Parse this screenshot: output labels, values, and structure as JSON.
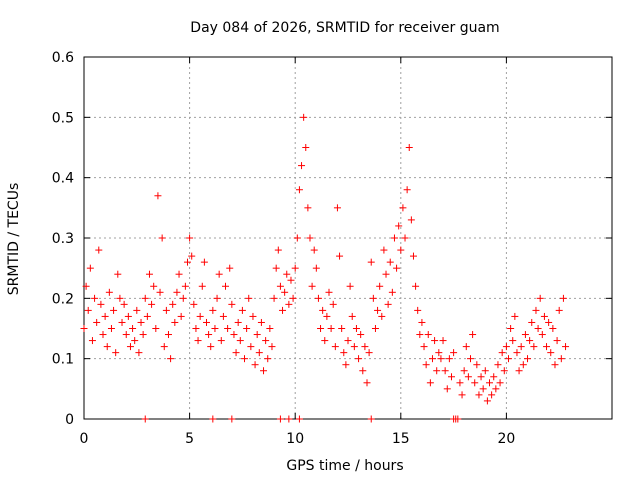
{
  "chart_data": {
    "type": "scatter",
    "title": "Day 084 of 2026, SRMTID for receiver guam",
    "xlabel": "GPS time / hours",
    "ylabel": "SRMTID / TECUs",
    "xlim": [
      0,
      25
    ],
    "ylim": [
      0,
      0.6
    ],
    "xticks": [
      {
        "value": 0,
        "label": "0"
      },
      {
        "value": 5,
        "label": "5"
      },
      {
        "value": 10,
        "label": "10"
      },
      {
        "value": 15,
        "label": "15"
      },
      {
        "value": 20,
        "label": "20"
      }
    ],
    "yticks": [
      {
        "value": 0,
        "label": "0"
      },
      {
        "value": 0.1,
        "label": "0.1"
      },
      {
        "value": 0.2,
        "label": "0.2"
      },
      {
        "value": 0.3,
        "label": "0.3"
      },
      {
        "value": 0.4,
        "label": "0.4"
      },
      {
        "value": 0.5,
        "label": "0.5"
      },
      {
        "value": 0.6,
        "label": "0.6"
      }
    ],
    "grid": true,
    "marker": "+",
    "marker_color": "#ff0000",
    "series": [
      {
        "name": "SRMTID",
        "color": "#ff0000",
        "points": [
          [
            0.0,
            0.15
          ],
          [
            0.1,
            0.22
          ],
          [
            0.2,
            0.18
          ],
          [
            0.3,
            0.25
          ],
          [
            0.4,
            0.13
          ],
          [
            0.5,
            0.2
          ],
          [
            0.6,
            0.16
          ],
          [
            0.7,
            0.28
          ],
          [
            0.8,
            0.19
          ],
          [
            0.9,
            0.14
          ],
          [
            1.0,
            0.17
          ],
          [
            1.1,
            0.12
          ],
          [
            1.2,
            0.21
          ],
          [
            1.3,
            0.15
          ],
          [
            1.4,
            0.18
          ],
          [
            1.5,
            0.11
          ],
          [
            1.6,
            0.24
          ],
          [
            1.7,
            0.2
          ],
          [
            1.8,
            0.16
          ],
          [
            1.9,
            0.19
          ],
          [
            2.0,
            0.14
          ],
          [
            2.1,
            0.17
          ],
          [
            2.2,
            0.12
          ],
          [
            2.3,
            0.15
          ],
          [
            2.4,
            0.13
          ],
          [
            2.5,
            0.18
          ],
          [
            2.6,
            0.11
          ],
          [
            2.7,
            0.16
          ],
          [
            2.8,
            0.14
          ],
          [
            2.9,
            0.2
          ],
          [
            3.0,
            0.17
          ],
          [
            3.1,
            0.24
          ],
          [
            3.2,
            0.19
          ],
          [
            3.3,
            0.22
          ],
          [
            3.4,
            0.15
          ],
          [
            3.5,
            0.37
          ],
          [
            3.6,
            0.21
          ],
          [
            3.7,
            0.3
          ],
          [
            3.8,
            0.12
          ],
          [
            3.9,
            0.18
          ],
          [
            4.0,
            0.14
          ],
          [
            4.1,
            0.1
          ],
          [
            4.2,
            0.19
          ],
          [
            4.3,
            0.16
          ],
          [
            4.4,
            0.21
          ],
          [
            4.5,
            0.24
          ],
          [
            4.6,
            0.17
          ],
          [
            4.7,
            0.2
          ],
          [
            4.8,
            0.22
          ],
          [
            4.9,
            0.26
          ],
          [
            5.0,
            0.3
          ],
          [
            5.1,
            0.27
          ],
          [
            5.2,
            0.19
          ],
          [
            5.3,
            0.15
          ],
          [
            5.4,
            0.13
          ],
          [
            5.5,
            0.17
          ],
          [
            5.6,
            0.22
          ],
          [
            5.7,
            0.26
          ],
          [
            5.8,
            0.16
          ],
          [
            5.9,
            0.14
          ],
          [
            6.0,
            0.12
          ],
          [
            6.1,
            0.18
          ],
          [
            6.2,
            0.15
          ],
          [
            6.3,
            0.2
          ],
          [
            6.4,
            0.24
          ],
          [
            6.5,
            0.13
          ],
          [
            6.6,
            0.17
          ],
          [
            6.7,
            0.22
          ],
          [
            6.8,
            0.15
          ],
          [
            6.9,
            0.25
          ],
          [
            7.0,
            0.19
          ],
          [
            7.1,
            0.14
          ],
          [
            7.2,
            0.11
          ],
          [
            7.3,
            0.16
          ],
          [
            7.4,
            0.13
          ],
          [
            7.5,
            0.18
          ],
          [
            7.6,
            0.1
          ],
          [
            7.7,
            0.15
          ],
          [
            7.8,
            0.2
          ],
          [
            7.9,
            0.12
          ],
          [
            8.0,
            0.17
          ],
          [
            8.1,
            0.09
          ],
          [
            8.2,
            0.14
          ],
          [
            8.3,
            0.11
          ],
          [
            8.4,
            0.16
          ],
          [
            8.5,
            0.08
          ],
          [
            8.6,
            0.13
          ],
          [
            8.7,
            0.1
          ],
          [
            8.8,
            0.15
          ],
          [
            8.9,
            0.12
          ],
          [
            9.0,
            0.2
          ],
          [
            9.1,
            0.25
          ],
          [
            9.2,
            0.28
          ],
          [
            9.3,
            0.22
          ],
          [
            9.4,
            0.18
          ],
          [
            9.5,
            0.21
          ],
          [
            9.6,
            0.24
          ],
          [
            9.7,
            0.19
          ],
          [
            9.8,
            0.23
          ],
          [
            9.9,
            0.2
          ],
          [
            10.0,
            0.25
          ],
          [
            10.1,
            0.3
          ],
          [
            10.2,
            0.38
          ],
          [
            10.3,
            0.42
          ],
          [
            10.4,
            0.5
          ],
          [
            10.5,
            0.45
          ],
          [
            10.6,
            0.35
          ],
          [
            10.7,
            0.3
          ],
          [
            10.8,
            0.22
          ],
          [
            10.9,
            0.28
          ],
          [
            11.0,
            0.25
          ],
          [
            11.1,
            0.2
          ],
          [
            11.2,
            0.15
          ],
          [
            11.3,
            0.18
          ],
          [
            11.4,
            0.13
          ],
          [
            11.5,
            0.17
          ],
          [
            11.6,
            0.21
          ],
          [
            11.7,
            0.15
          ],
          [
            11.8,
            0.19
          ],
          [
            11.9,
            0.12
          ],
          [
            12.0,
            0.35
          ],
          [
            12.1,
            0.27
          ],
          [
            12.2,
            0.15
          ],
          [
            12.3,
            0.11
          ],
          [
            12.4,
            0.09
          ],
          [
            12.5,
            0.13
          ],
          [
            12.6,
            0.22
          ],
          [
            12.7,
            0.17
          ],
          [
            12.8,
            0.12
          ],
          [
            12.9,
            0.15
          ],
          [
            13.0,
            0.1
          ],
          [
            13.1,
            0.14
          ],
          [
            13.2,
            0.08
          ],
          [
            13.3,
            0.12
          ],
          [
            13.4,
            0.06
          ],
          [
            13.5,
            0.11
          ],
          [
            13.6,
            0.26
          ],
          [
            13.7,
            0.2
          ],
          [
            13.8,
            0.15
          ],
          [
            13.9,
            0.18
          ],
          [
            14.0,
            0.22
          ],
          [
            14.1,
            0.17
          ],
          [
            14.2,
            0.28
          ],
          [
            14.3,
            0.24
          ],
          [
            14.4,
            0.19
          ],
          [
            14.5,
            0.26
          ],
          [
            14.6,
            0.21
          ],
          [
            14.7,
            0.3
          ],
          [
            14.8,
            0.25
          ],
          [
            14.9,
            0.32
          ],
          [
            15.0,
            0.28
          ],
          [
            15.1,
            0.35
          ],
          [
            15.2,
            0.3
          ],
          [
            15.3,
            0.38
          ],
          [
            15.4,
            0.45
          ],
          [
            15.5,
            0.33
          ],
          [
            15.6,
            0.27
          ],
          [
            15.7,
            0.22
          ],
          [
            15.8,
            0.18
          ],
          [
            15.9,
            0.14
          ],
          [
            16.0,
            0.16
          ],
          [
            16.1,
            0.12
          ],
          [
            16.2,
            0.09
          ],
          [
            16.3,
            0.14
          ],
          [
            16.4,
            0.06
          ],
          [
            16.5,
            0.1
          ],
          [
            16.6,
            0.13
          ],
          [
            16.7,
            0.08
          ],
          [
            16.8,
            0.11
          ],
          [
            16.9,
            0.1
          ],
          [
            17.0,
            0.13
          ],
          [
            17.1,
            0.08
          ],
          [
            17.2,
            0.05
          ],
          [
            17.3,
            0.1
          ],
          [
            17.4,
            0.07
          ],
          [
            17.5,
            0.11
          ],
          [
            17.6,
            0.0
          ],
          [
            17.7,
            0.0
          ],
          [
            17.8,
            0.06
          ],
          [
            17.9,
            0.04
          ],
          [
            18.0,
            0.08
          ],
          [
            18.1,
            0.12
          ],
          [
            18.2,
            0.07
          ],
          [
            18.3,
            0.1
          ],
          [
            18.4,
            0.14
          ],
          [
            18.5,
            0.06
          ],
          [
            18.6,
            0.09
          ],
          [
            18.7,
            0.04
          ],
          [
            18.8,
            0.07
          ],
          [
            18.9,
            0.05
          ],
          [
            19.0,
            0.08
          ],
          [
            19.1,
            0.03
          ],
          [
            19.2,
            0.06
          ],
          [
            19.3,
            0.04
          ],
          [
            19.4,
            0.07
          ],
          [
            19.5,
            0.05
          ],
          [
            19.6,
            0.09
          ],
          [
            19.7,
            0.06
          ],
          [
            19.8,
            0.11
          ],
          [
            19.9,
            0.08
          ],
          [
            20.0,
            0.12
          ],
          [
            20.1,
            0.1
          ],
          [
            20.2,
            0.15
          ],
          [
            20.3,
            0.13
          ],
          [
            20.4,
            0.17
          ],
          [
            20.5,
            0.11
          ],
          [
            20.6,
            0.08
          ],
          [
            20.7,
            0.12
          ],
          [
            20.8,
            0.09
          ],
          [
            20.9,
            0.14
          ],
          [
            21.0,
            0.1
          ],
          [
            21.1,
            0.13
          ],
          [
            21.2,
            0.16
          ],
          [
            21.3,
            0.12
          ],
          [
            21.4,
            0.18
          ],
          [
            21.5,
            0.15
          ],
          [
            21.6,
            0.2
          ],
          [
            21.7,
            0.14
          ],
          [
            21.8,
            0.17
          ],
          [
            21.9,
            0.12
          ],
          [
            22.0,
            0.16
          ],
          [
            22.1,
            0.11
          ],
          [
            22.2,
            0.15
          ],
          [
            22.3,
            0.09
          ],
          [
            22.4,
            0.13
          ],
          [
            22.5,
            0.18
          ],
          [
            22.6,
            0.1
          ],
          [
            22.7,
            0.2
          ],
          [
            22.8,
            0.12
          ],
          [
            2.9,
            0.0
          ],
          [
            6.1,
            0.0
          ],
          [
            7.0,
            0.0
          ],
          [
            9.3,
            0.0
          ],
          [
            9.7,
            0.0
          ],
          [
            10.2,
            0.0
          ],
          [
            13.6,
            0.0
          ],
          [
            17.5,
            0.0
          ]
        ]
      }
    ]
  }
}
